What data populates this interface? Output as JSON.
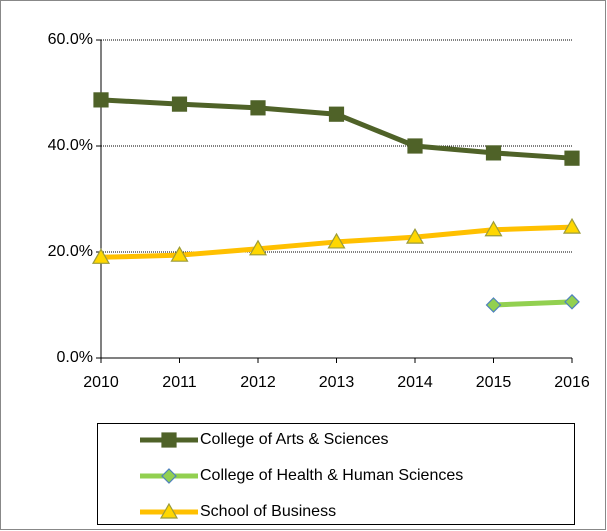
{
  "chart_data": {
    "type": "line",
    "categories": [
      "2010",
      "2011",
      "2012",
      "2013",
      "2014",
      "2015",
      "2016"
    ],
    "series": [
      {
        "name": "College of Arts & Sciences",
        "color": "#4f6228",
        "marker": "square",
        "marker_fill": "#4f6228",
        "marker_stroke": "#4f6228",
        "values": [
          48.7,
          47.9,
          47.2,
          46.0,
          40.0,
          38.7,
          37.7
        ]
      },
      {
        "name": "College of Health & Human Sciences",
        "color": "#92d050",
        "marker": "diamond",
        "marker_fill": "#92d050",
        "marker_stroke": "#4f81bd",
        "values": [
          null,
          null,
          null,
          null,
          null,
          10.0,
          10.6
        ]
      },
      {
        "name": "School of Business",
        "color": "#ffc000",
        "marker": "triangle",
        "marker_fill": "#ffd700",
        "marker_stroke": "#9b9b3a",
        "values": [
          19.0,
          19.4,
          20.6,
          21.9,
          22.8,
          24.2,
          24.7
        ]
      }
    ],
    "ylim": [
      0,
      60
    ],
    "yticks": [
      {
        "value": 0,
        "label": "0.0%"
      },
      {
        "value": 20,
        "label": "20.0%"
      },
      {
        "value": 40,
        "label": "40.0%"
      },
      {
        "value": 60,
        "label": "60.0%"
      }
    ],
    "grid": true,
    "legend": "bottom"
  }
}
